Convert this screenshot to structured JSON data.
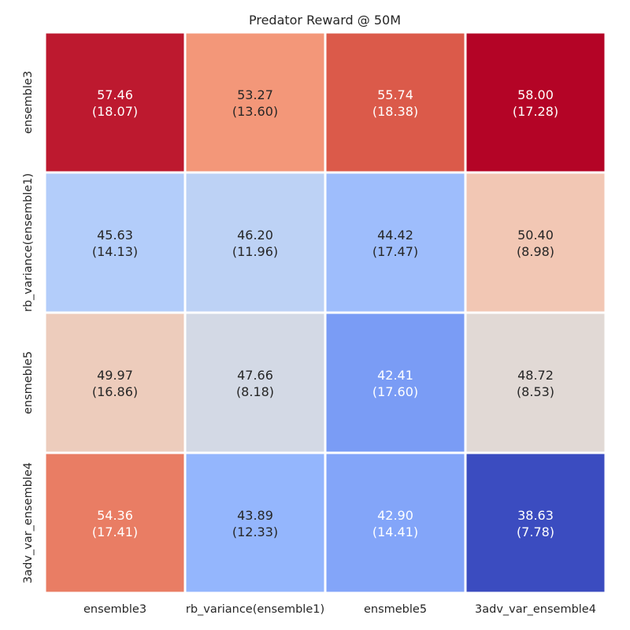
{
  "chart_data": {
    "type": "heatmap",
    "title": "Predator Reward @ 50M",
    "x_categories": [
      "ensemble3",
      "rb_variance(ensemble1)",
      "ensmeble5",
      "3adv_var_ensemble4"
    ],
    "y_categories": [
      "ensemble3",
      "rb_variance(ensemble1)",
      "ensmeble5",
      "3adv_var_ensemble4"
    ],
    "values": [
      [
        57.46,
        53.27,
        55.74,
        58.0
      ],
      [
        45.63,
        46.2,
        44.42,
        50.4
      ],
      [
        49.97,
        47.66,
        42.41,
        48.72
      ],
      [
        54.36,
        43.89,
        42.9,
        38.63
      ]
    ],
    "std": [
      [
        18.07,
        13.6,
        18.38,
        17.28
      ],
      [
        14.13,
        11.96,
        17.47,
        8.98
      ],
      [
        16.86,
        8.18,
        17.6,
        8.53
      ],
      [
        17.41,
        12.33,
        14.41,
        7.78
      ]
    ],
    "colormap": "coolwarm",
    "vmin": 38.63,
    "vmax": 58.0,
    "colorbar": false,
    "grid": true,
    "line_color": "#ffffff",
    "text_dark_color": "#262626",
    "text_light_color": "#ffffff"
  }
}
